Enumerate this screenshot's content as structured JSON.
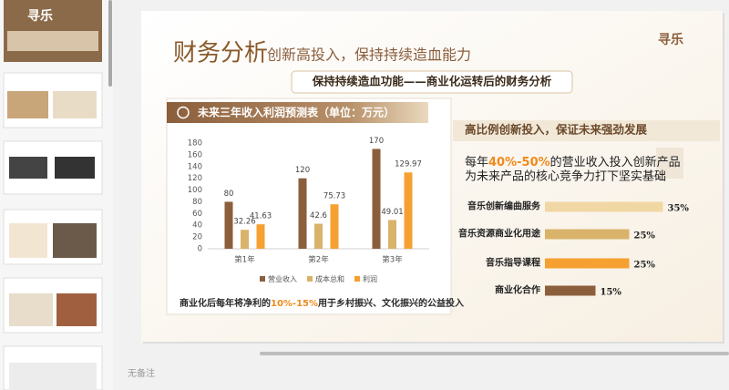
{
  "sidebar": {
    "thumbnail_title": "寻乐"
  },
  "slide": {
    "title": "财务分析",
    "subtitle": "创新高投入，保持持续造血能力",
    "logo": "寻乐",
    "banner": "保持持续造血功能——商业化运转后的财务分析",
    "left_panel": {
      "header": "未来三年收入利润预测表（单位：万元）",
      "footnote": [
        "商业化后每年将净利的",
        "10%-15%",
        "用于乡村振兴、文化振兴的公益投入"
      ]
    },
    "right_panel": {
      "header": "高比例创新投入，保证未来强劲发展",
      "intro_line1": [
        "每年",
        "40%-50%",
        "的营业收入投入创新产品"
      ],
      "intro_line2": "为未来产品的核心竞争力打下坚实基础"
    }
  },
  "notes": "无备注",
  "chart_data": [
    {
      "type": "bar",
      "categories": [
        "第1年",
        "第2年",
        "第3年"
      ],
      "series": [
        {
          "name": "营业收入",
          "color": "#8b5e3c",
          "values": [
            80,
            120,
            170
          ]
        },
        {
          "name": "成本总和",
          "color": "#d9b36a",
          "values": [
            32.26,
            42.6,
            49.01
          ]
        },
        {
          "name": "利润",
          "color": "#f5a030",
          "values": [
            41.63,
            75.73,
            129.97
          ]
        }
      ],
      "ylim": [
        0,
        180
      ],
      "yticks": [
        0,
        20,
        40,
        60,
        80,
        100,
        120,
        140,
        160,
        180
      ],
      "grid": false,
      "legend": "bottom"
    },
    {
      "type": "hbar",
      "categories": [
        "音乐创新编曲服务",
        "音乐资源商业化用途",
        "音乐指导课程",
        "商业化合作"
      ],
      "values": [
        35,
        25,
        25,
        15
      ],
      "value_labels": [
        "35%",
        "25%",
        "25%",
        "15%"
      ],
      "colors": [
        "#f1d7a4",
        "#d9b36a",
        "#f5a030",
        "#8b5e3c"
      ]
    }
  ]
}
